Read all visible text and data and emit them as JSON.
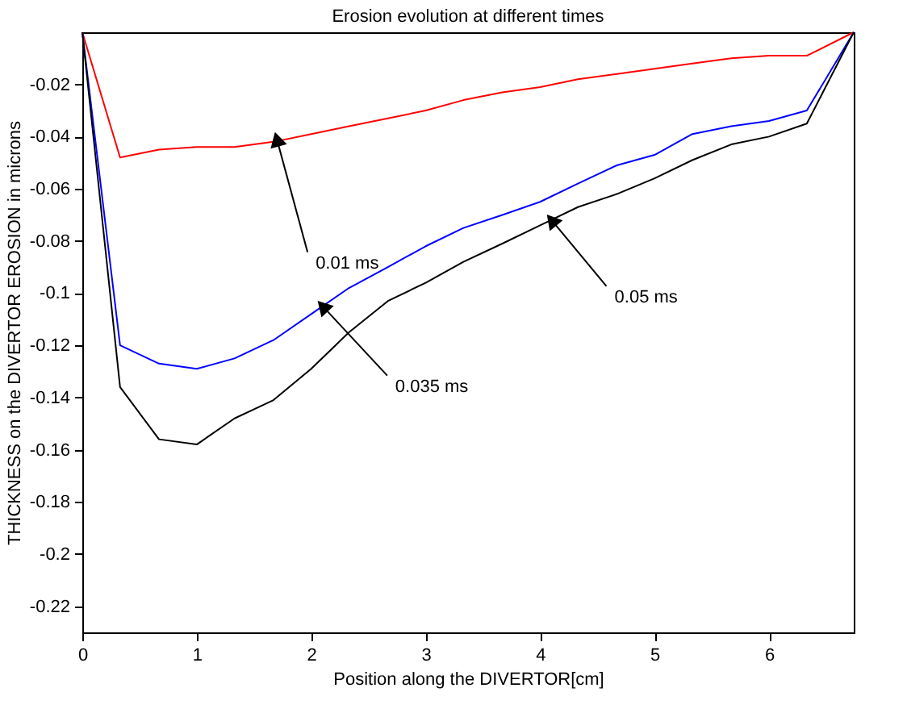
{
  "chart_data": {
    "type": "line",
    "title": "Erosion evolution at different times",
    "xlabel": "Position along the DIVERTOR[cm]",
    "ylabel": "THICKNESS on the DIVERTOR EROSION in microns",
    "x": [
      0,
      0.33,
      0.67,
      1,
      1.33,
      1.67,
      2,
      2.33,
      2.67,
      3,
      3.33,
      3.67,
      4,
      4.33,
      4.67,
      5,
      5.33,
      5.67,
      6,
      6.33,
      6.74
    ],
    "series": [
      {
        "color": "#ff0000",
        "values": [
          0,
          -0.048,
          -0.045,
          -0.044,
          -0.044,
          -0.042,
          -0.039,
          -0.036,
          -0.033,
          -0.03,
          -0.026,
          -0.023,
          -0.021,
          -0.018,
          -0.016,
          -0.014,
          -0.012,
          -0.01,
          -0.009,
          -0.009,
          0
        ]
      },
      {
        "color": "#0000ff",
        "values": [
          0,
          -0.12,
          -0.127,
          -0.129,
          -0.125,
          -0.118,
          -0.108,
          -0.098,
          -0.09,
          -0.082,
          -0.075,
          -0.07,
          -0.065,
          -0.058,
          -0.051,
          -0.047,
          -0.039,
          -0.036,
          -0.034,
          -0.03,
          0
        ]
      },
      {
        "color": "#000000",
        "values": [
          0,
          -0.136,
          -0.156,
          -0.158,
          -0.148,
          -0.141,
          -0.129,
          -0.115,
          -0.103,
          -0.096,
          -0.088,
          -0.081,
          -0.074,
          -0.067,
          -0.062,
          -0.056,
          -0.049,
          -0.043,
          -0.04,
          -0.035,
          0
        ]
      }
    ],
    "annotations": [
      {
        "text": "0.01 ms",
        "x": 1.7,
        "y": -0.041
      },
      {
        "text": "0.05 ms",
        "x": 4.1,
        "y": -0.072
      },
      {
        "text": "0.035 ms",
        "x": 2.1,
        "y": -0.105
      }
    ],
    "xlim": [
      0,
      6.74
    ],
    "xticks": [
      0,
      1,
      2,
      3,
      4,
      5,
      6
    ],
    "ylim": [
      -0.23,
      0
    ],
    "yticks": [
      -0.02,
      -0.04,
      -0.06,
      -0.08,
      -0.1,
      -0.12,
      -0.14,
      -0.16,
      -0.18,
      -0.2,
      -0.22
    ],
    "marker": "none",
    "line_style": "solid"
  }
}
